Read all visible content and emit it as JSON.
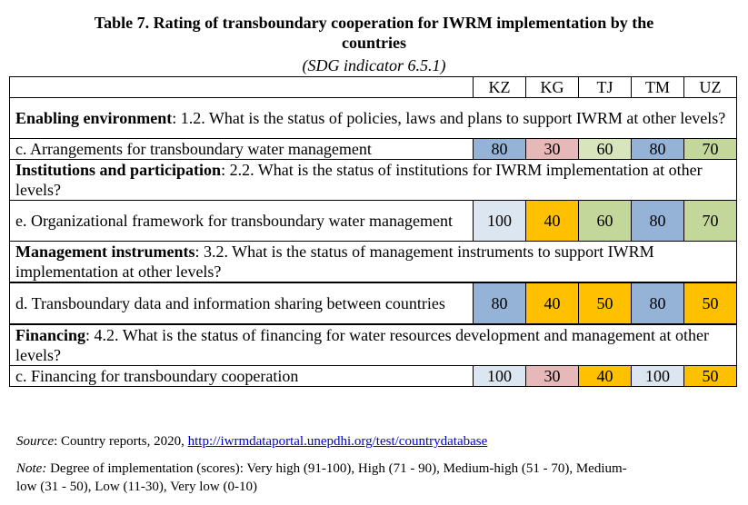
{
  "title_line1": "Table 7. Rating of transboundary  cooperation for IWRM implementation by the",
  "title_line2": "countries",
  "subtitle": "(SDG indicator 6.5.1)",
  "columns": [
    "KZ",
    "KG",
    "TJ",
    "TM",
    "UZ"
  ],
  "sections": [
    {
      "name": "Enabling environment",
      "question": ": 1.2. What is the status of policies, laws and plans to support IWRM at other levels?",
      "row_label": "c. Arrangements for transboundary water management",
      "values": [
        "80",
        "30",
        "60",
        "80",
        "70"
      ],
      "colors": [
        "#95b3d7",
        "#e6b8b7",
        "#d7e4bc",
        "#95b3d7",
        "#c4d79b"
      ]
    },
    {
      "name": "Institutions  and participation",
      "question": ":  2.2. What is the status of institutions for IWRM implementation at other levels?",
      "row_label": "e. Organizational framework for transboundary water management",
      "values": [
        "100",
        "40",
        "60",
        "80",
        "70"
      ],
      "colors": [
        "#dce6f1",
        "#ffc000",
        "#c4d79b",
        "#95b3d7",
        "#c4d79b"
      ]
    },
    {
      "name": "Management instruments",
      "question": ":  3.2. What is the status of management instruments to support IWRM implementation at other levels?",
      "row_label": "d. Transboundary data and information sharing between countries",
      "values": [
        "80",
        "40",
        "50",
        "80",
        "50"
      ],
      "colors": [
        "#95b3d7",
        "#ffc000",
        "#ffc000",
        "#95b3d7",
        "#ffc000"
      ]
    },
    {
      "name": "Financing",
      "question": ": 4.2. What is the status of financing for water resources development and management at other levels?",
      "row_label": "c. Financing for transboundary cooperation",
      "values": [
        "100",
        "30",
        "40",
        "100",
        "50"
      ],
      "colors": [
        "#dce6f1",
        "#e6b8b7",
        "#ffc000",
        "#dce6f1",
        "#ffc000"
      ]
    }
  ],
  "source_label": "Source",
  "source_text": ": Country reports, 2020, ",
  "source_link": "http://iwrmdataportal.unepdhi.org/test/countrydatabase",
  "note_label": "Note:",
  "note_line1": " Degree of implementation (scores): Very high (91-100), High (71 - 90), Medium-high (51 - 70), Medium-",
  "note_line2": "low (31 - 50), Low (11-30), Very low (0-10)"
}
